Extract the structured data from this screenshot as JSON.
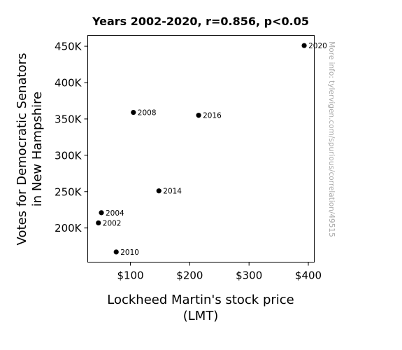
{
  "chart_data": {
    "type": "scatter",
    "title": "Years 2002-2020, r=0.856, p<0.05",
    "xlabel_lines": [
      "Lockheed Martin's stock price",
      "(LMT)"
    ],
    "ylabel_lines": [
      "Votes for Democratic Senators",
      "in New Hampshire"
    ],
    "xlim": [
      28,
      410
    ],
    "ylim": [
      153000,
      465000
    ],
    "x_ticks": [
      {
        "value": 100,
        "label": "$100"
      },
      {
        "value": 200,
        "label": "$200"
      },
      {
        "value": 300,
        "label": "$300"
      },
      {
        "value": 400,
        "label": "$400"
      }
    ],
    "y_ticks": [
      {
        "value": 200000,
        "label": "200K"
      },
      {
        "value": 250000,
        "label": "250K"
      },
      {
        "value": 300000,
        "label": "300K"
      },
      {
        "value": 350000,
        "label": "350K"
      },
      {
        "value": 400000,
        "label": "400K"
      },
      {
        "value": 450000,
        "label": "450K"
      }
    ],
    "points": [
      {
        "label": "2002",
        "x": 46,
        "y": 207000
      },
      {
        "label": "2004",
        "x": 51,
        "y": 221000
      },
      {
        "label": "2008",
        "x": 105,
        "y": 359000
      },
      {
        "label": "2010",
        "x": 76,
        "y": 167000
      },
      {
        "label": "2014",
        "x": 148,
        "y": 251000
      },
      {
        "label": "2016",
        "x": 215,
        "y": 355000
      },
      {
        "label": "2020",
        "x": 393,
        "y": 451000
      }
    ],
    "marker_color": "#000000",
    "grid": false
  },
  "watermark": "More info: tylervigen.com/spurious/correlation/49515"
}
